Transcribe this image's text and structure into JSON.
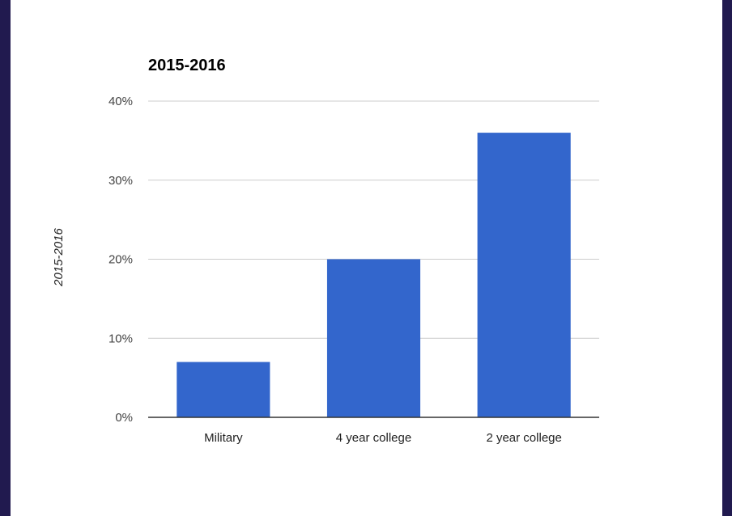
{
  "chart_data": {
    "type": "bar",
    "title": "2015-2016",
    "ylabel": "2015-2016",
    "xlabel": "",
    "categories": [
      "Military",
      "4 year college",
      "2 year college"
    ],
    "values": [
      7,
      20,
      36
    ],
    "ylim": [
      0,
      40
    ],
    "yticks": [
      0,
      10,
      20,
      30,
      40
    ],
    "ytick_labels": [
      "0%",
      "10%",
      "20%",
      "30%",
      "40%"
    ],
    "grid": true,
    "legend": "none",
    "colors": {
      "bar": "#3366cc",
      "grid": "#cccccc",
      "baseline": "#333333",
      "frame": "#211a4f"
    }
  }
}
